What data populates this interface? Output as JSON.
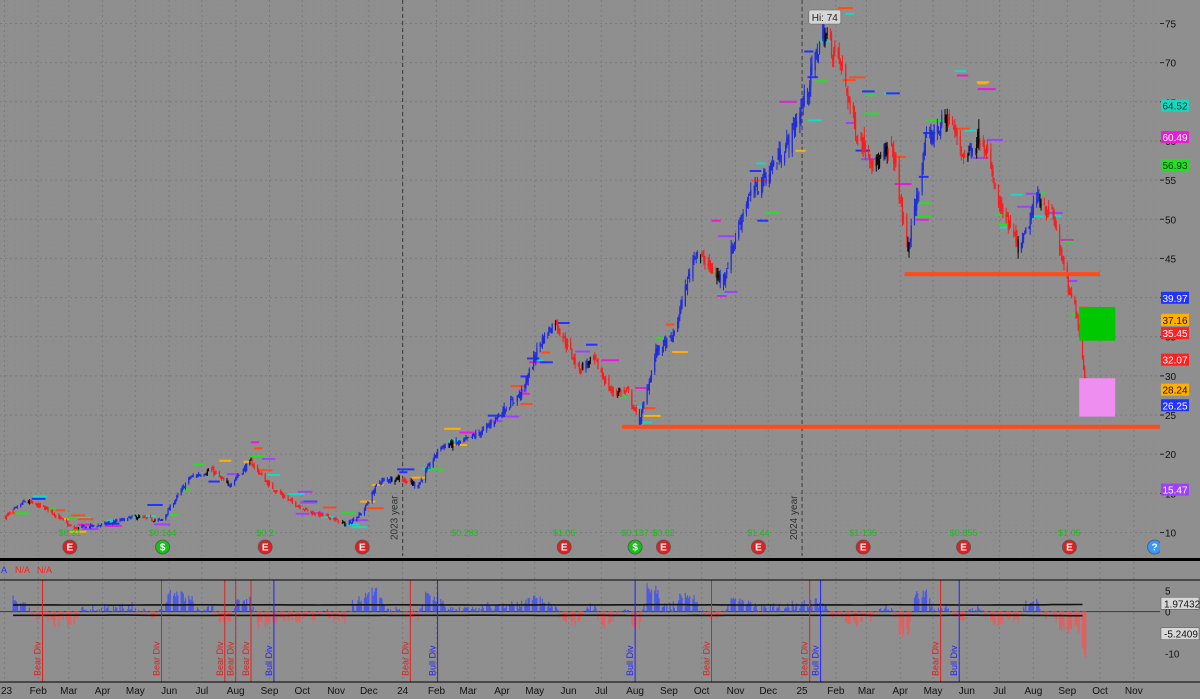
{
  "chart_data": [
    {
      "type": "candlestick",
      "title": "",
      "ylim": [
        7,
        78
      ],
      "yticks": [
        10,
        15,
        20,
        25,
        30,
        35,
        40,
        45,
        50,
        55,
        60,
        65,
        70,
        75
      ],
      "x_month_labels": [
        "23",
        "Feb",
        "Mar",
        "Apr",
        "May",
        "Jun",
        "Jul",
        "Aug",
        "Sep",
        "Oct",
        "Nov",
        "Dec",
        "24",
        "Feb",
        "Mar",
        "Apr",
        "May",
        "Jun",
        "Jul",
        "Aug",
        "Sep",
        "Oct",
        "Nov",
        "Dec",
        "25",
        "Feb",
        "Mar",
        "Apr",
        "May",
        "Jun",
        "Jul",
        "Aug",
        "Sep",
        "Oct",
        "Nov"
      ],
      "year_separators": [
        "2023 year",
        "2024 year"
      ],
      "high_label": "Hi: 74",
      "price_path": [
        [
          "2023-01-02",
          12
        ],
        [
          "2023-01-20",
          14
        ],
        [
          "2023-02-10",
          13
        ],
        [
          "2023-03-05",
          10.5
        ],
        [
          "2023-04-01",
          11
        ],
        [
          "2023-05-01",
          12
        ],
        [
          "2023-05-25",
          11.5
        ],
        [
          "2023-06-20",
          17
        ],
        [
          "2023-07-10",
          18
        ],
        [
          "2023-07-25",
          16
        ],
        [
          "2023-08-15",
          19
        ],
        [
          "2023-09-01",
          16
        ],
        [
          "2023-09-20",
          14
        ],
        [
          "2023-10-10",
          12.5
        ],
        [
          "2023-10-25",
          12
        ],
        [
          "2023-11-10",
          11
        ],
        [
          "2023-11-25",
          12.5
        ],
        [
          "2023-12-10",
          16.5
        ],
        [
          "2023-12-28",
          17
        ],
        [
          "2024-01-15",
          16
        ],
        [
          "2024-02-05",
          21
        ],
        [
          "2024-02-25",
          21.5
        ],
        [
          "2024-03-15",
          23
        ],
        [
          "2024-04-05",
          26
        ],
        [
          "2024-04-20",
          28
        ],
        [
          "2024-05-05",
          34
        ],
        [
          "2024-05-20",
          37
        ],
        [
          "2024-06-10",
          31
        ],
        [
          "2024-06-25",
          32
        ],
        [
          "2024-07-10",
          28
        ],
        [
          "2024-07-25",
          28
        ],
        [
          "2024-08-05",
          24
        ],
        [
          "2024-08-20",
          33
        ],
        [
          "2024-09-05",
          35
        ],
        [
          "2024-09-25",
          46
        ],
        [
          "2024-10-20",
          42
        ],
        [
          "2024-11-10",
          52
        ],
        [
          "2024-12-01",
          56
        ],
        [
          "2024-12-20",
          60
        ],
        [
          "2025-01-05",
          66
        ],
        [
          "2025-01-20",
          74
        ],
        [
          "2025-02-05",
          70
        ],
        [
          "2025-02-20",
          61
        ],
        [
          "2025-03-10",
          57
        ],
        [
          "2025-03-25",
          59
        ],
        [
          "2025-04-08",
          46
        ],
        [
          "2025-04-25",
          60
        ],
        [
          "2025-05-15",
          63
        ],
        [
          "2025-05-30",
          58
        ],
        [
          "2025-06-15",
          61
        ],
        [
          "2025-06-30",
          52
        ],
        [
          "2025-07-20",
          46
        ],
        [
          "2025-08-05",
          53
        ],
        [
          "2025-08-20",
          50
        ],
        [
          "2025-09-02",
          41
        ],
        [
          "2025-09-10",
          38
        ],
        [
          "2025-09-18",
          29
        ]
      ],
      "support_lines": [
        {
          "value": 43,
          "from": "2025-04-05",
          "to": "2025-10-01",
          "color": "#ff4a1a"
        },
        {
          "value": 23.5,
          "from": "2024-07-20",
          "to": "2025-11-25",
          "color": "#ff4a1a"
        }
      ],
      "zones": [
        {
          "low": 34.5,
          "high": 38.8,
          "from": "2025-09-12",
          "to": "2025-10-15",
          "color": "#00c800"
        },
        {
          "low": 24.8,
          "high": 29.7,
          "from": "2025-09-12",
          "to": "2025-10-15",
          "color": "#ee8ef0"
        }
      ],
      "price_labels": [
        {
          "value": 64.52,
          "text": "64.52",
          "bg": "#18d8c0",
          "fg": "#003a33"
        },
        {
          "value": 60.49,
          "text": "60.49",
          "bg": "#e91ad8",
          "fg": "#ffffff"
        },
        {
          "value": 56.93,
          "text": "56.93",
          "bg": "#24e024",
          "fg": "#003300"
        },
        {
          "value": 39.97,
          "text": "39.97",
          "bg": "#2233ff",
          "fg": "#ffffff"
        },
        {
          "value": 37.16,
          "text": "37.16",
          "bg": "#ffb000",
          "fg": "#221100"
        },
        {
          "value": 35.45,
          "text": "35.45",
          "bg": "#ff2020",
          "fg": "#ffffff"
        },
        {
          "value": 32.07,
          "text": "32.07",
          "bg": "#ff2020",
          "fg": "#ffffff"
        },
        {
          "value": 28.24,
          "text": "28.24",
          "bg": "#ffb000",
          "fg": "#221100"
        },
        {
          "value": 26.25,
          "text": "26.25",
          "bg": "#2233ff",
          "fg": "#ffffff"
        },
        {
          "value": 15.47,
          "text": "15.47",
          "bg": "#a040ff",
          "fg": "#ffffff"
        }
      ],
      "earnings_markers": [
        {
          "date": "2023-03-02",
          "kind": "E",
          "color": "#e02020",
          "text": "$0.31"
        },
        {
          "date": "2023-05-26",
          "kind": "$",
          "color": "#16c016",
          "text": "$0.144"
        },
        {
          "date": "2023-08-28",
          "kind": "E",
          "color": "#e02020",
          "text": "$0.2"
        },
        {
          "date": "2023-11-25",
          "kind": "E",
          "color": "#e02020",
          "text": ""
        },
        {
          "date": "2024-02-27",
          "kind": "",
          "color": "#16c016",
          "text": "$0.283"
        },
        {
          "date": "2024-05-28",
          "kind": "E",
          "color": "#e02020",
          "text": "$1.06"
        },
        {
          "date": "2024-08-01",
          "kind": "$",
          "color": "#16c016",
          "text": "$0.137"
        },
        {
          "date": "2024-08-27",
          "kind": "E",
          "color": "#e02020",
          "text": "$0.62"
        },
        {
          "date": "2024-11-22",
          "kind": "E",
          "color": "#e02020",
          "text": "$1.44"
        },
        {
          "date": "2025-02-26",
          "kind": "E",
          "color": "#e02020",
          "text": "$1.135"
        },
        {
          "date": "2025-05-29",
          "kind": "E",
          "color": "#e02020",
          "text": "$0.855"
        },
        {
          "date": "2025-09-03",
          "kind": "E",
          "color": "#e02020",
          "text": "$1.05"
        },
        {
          "date": "2025-11-20",
          "kind": "?",
          "color": "#3399ff",
          "text": ""
        }
      ]
    },
    {
      "type": "histogram",
      "ylim": [
        -11.5,
        7.5
      ],
      "yticks": [
        5,
        0,
        -5,
        -10
      ],
      "na_labels": [
        "A",
        "N/A",
        "N/A"
      ],
      "value_labels": [
        {
          "value": 1.97432,
          "text": "1.97432"
        },
        {
          "value": -5.2409,
          "text": "-5.2409"
        }
      ],
      "divergence_markers": [
        {
          "date": "2023-02-05",
          "text": "Bear Div",
          "color": "#e02020"
        },
        {
          "date": "2023-05-25",
          "text": "Bear Div",
          "color": "#e02020"
        },
        {
          "date": "2023-07-22",
          "text": "Bear Div",
          "color": "#e02020"
        },
        {
          "date": "2023-08-01",
          "text": "Bear Div",
          "color": "#e02020"
        },
        {
          "date": "2023-08-15",
          "text": "Bear Div",
          "color": "#e02020"
        },
        {
          "date": "2023-09-05",
          "text": "Bull Div",
          "color": "#2222ff"
        },
        {
          "date": "2024-01-08",
          "text": "Bear Div",
          "color": "#e02020"
        },
        {
          "date": "2024-02-02",
          "text": "Bull Div",
          "color": "#2222ff"
        },
        {
          "date": "2024-08-01",
          "text": "Bull Div",
          "color": "#2222ff"
        },
        {
          "date": "2024-10-10",
          "text": "Bear Div",
          "color": "#e02020"
        },
        {
          "date": "2025-01-08",
          "text": "Bear Div",
          "color": "#e02020"
        },
        {
          "date": "2025-01-18",
          "text": "Bull Div",
          "color": "#2222ff"
        },
        {
          "date": "2025-05-08",
          "text": "Bear Div",
          "color": "#e02020"
        },
        {
          "date": "2025-05-25",
          "text": "Bull Div",
          "color": "#2222ff"
        }
      ]
    }
  ],
  "colors": {
    "background": "#8f8f8f",
    "up": "#1f2bdc",
    "down": "#ff1a1a",
    "neutral": "#0a0a0a",
    "axis_text": "#111111",
    "panel_separator": "#000000"
  }
}
